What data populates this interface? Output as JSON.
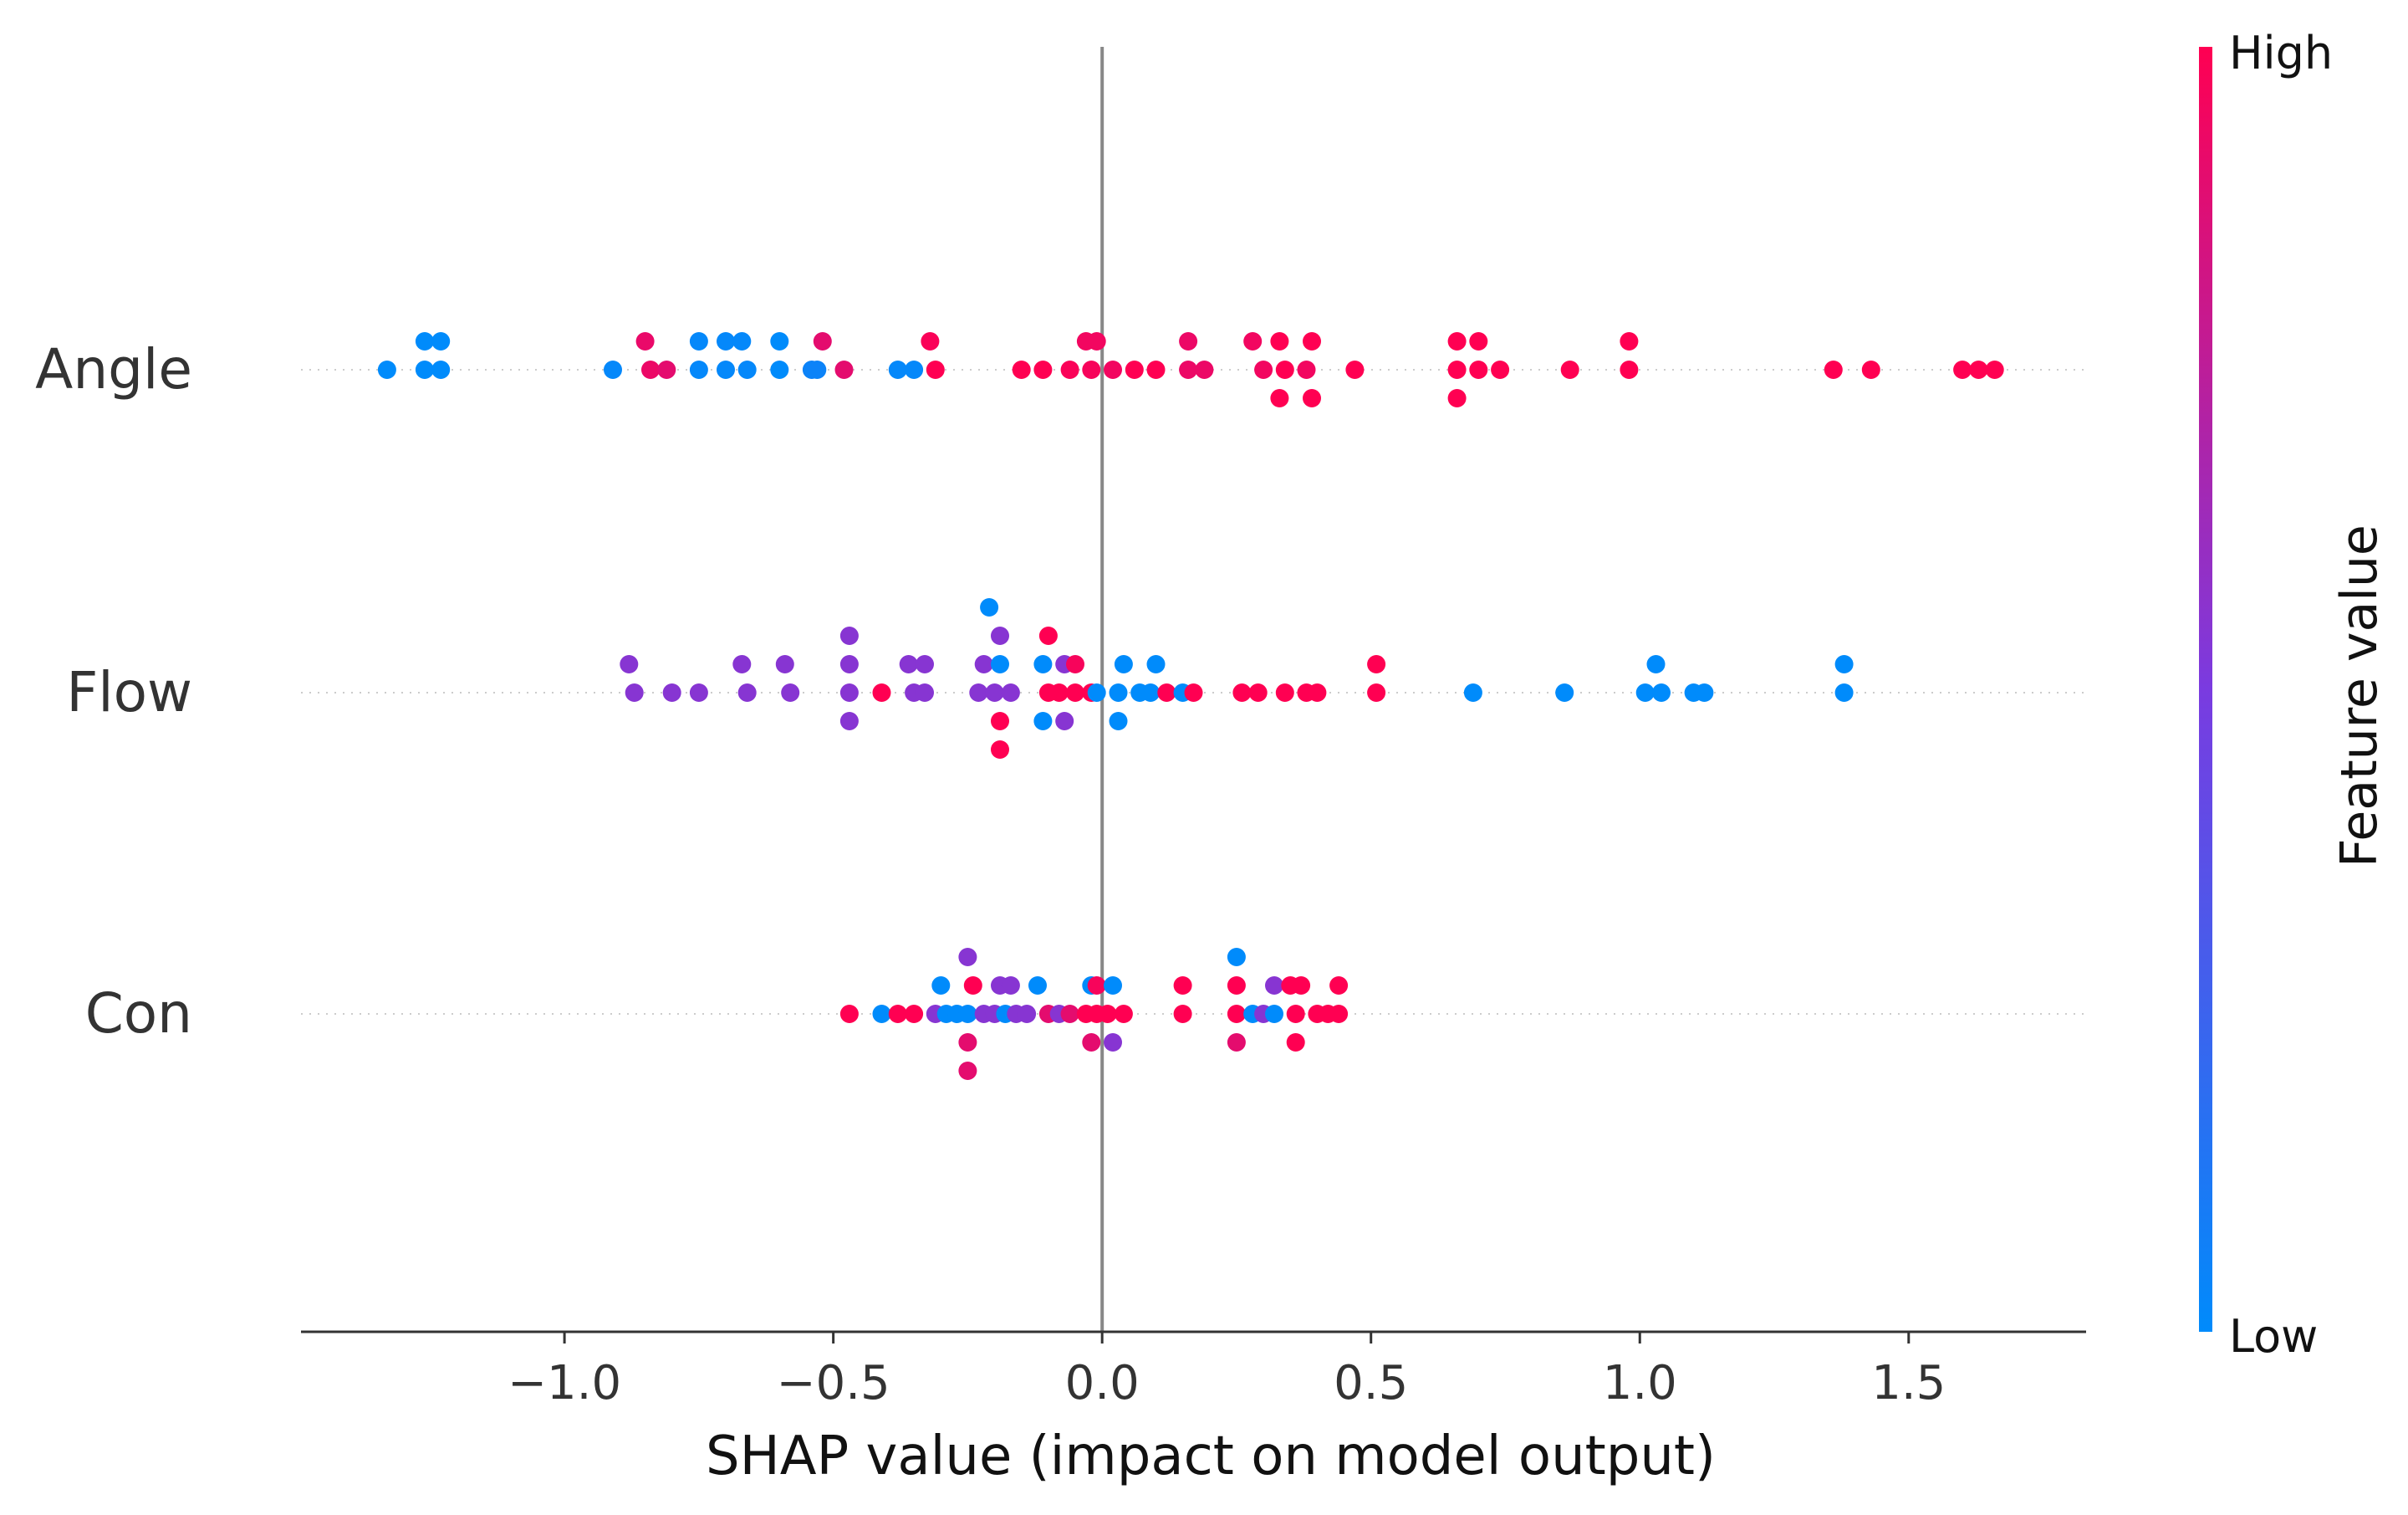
{
  "chart_data": {
    "type": "scatter",
    "subtype": "shap-beeswarm",
    "xlabel": "SHAP value (impact on model output)",
    "xlim": [
      -1.49,
      1.83
    ],
    "xticks": [
      -1.0,
      -0.5,
      0.0,
      0.5,
      1.0,
      1.5
    ],
    "xtick_labels": [
      "−1.0",
      "−0.5",
      "0.0",
      "0.5",
      "1.0",
      "1.5"
    ],
    "zero_line": 0,
    "colorbar": {
      "title": "Feature value",
      "high_label": "High",
      "low_label": "Low",
      "high_color": "#ff0052",
      "mid_color": "#7a3be0",
      "low_color": "#008bfb"
    },
    "features": [
      {
        "name": "Angle",
        "points": [
          {
            "x": -1.26,
            "offset": -1,
            "v": 0.0
          },
          {
            "x": -1.23,
            "offset": -1,
            "v": 0.0
          },
          {
            "x": -0.85,
            "offset": -1,
            "v": 0.92
          },
          {
            "x": -0.75,
            "offset": -1,
            "v": 0.02
          },
          {
            "x": -0.7,
            "offset": -1,
            "v": 0.02
          },
          {
            "x": -0.67,
            "offset": -1,
            "v": 0.02
          },
          {
            "x": -0.6,
            "offset": -1,
            "v": 0.0
          },
          {
            "x": -0.52,
            "offset": -1,
            "v": 0.9
          },
          {
            "x": -0.32,
            "offset": -1,
            "v": 0.98
          },
          {
            "x": -0.03,
            "offset": -1,
            "v": 0.95
          },
          {
            "x": -0.01,
            "offset": -1,
            "v": 0.95
          },
          {
            "x": 0.16,
            "offset": -1,
            "v": 0.93
          },
          {
            "x": 0.28,
            "offset": -1,
            "v": 0.95
          },
          {
            "x": 0.33,
            "offset": -1,
            "v": 1.0
          },
          {
            "x": 0.39,
            "offset": -1,
            "v": 1.0
          },
          {
            "x": 0.66,
            "offset": -1,
            "v": 1.0
          },
          {
            "x": 0.7,
            "offset": -1,
            "v": 1.0
          },
          {
            "x": 0.98,
            "offset": -1,
            "v": 1.0
          },
          {
            "x": -1.33,
            "offset": 0,
            "v": 0.0
          },
          {
            "x": -1.26,
            "offset": 0,
            "v": 0.0
          },
          {
            "x": -1.23,
            "offset": 0,
            "v": 0.0
          },
          {
            "x": -0.91,
            "offset": 0,
            "v": 0.02
          },
          {
            "x": -0.84,
            "offset": 0,
            "v": 0.93
          },
          {
            "x": -0.81,
            "offset": 0,
            "v": 0.9
          },
          {
            "x": -0.75,
            "offset": 0,
            "v": 0.02
          },
          {
            "x": -0.7,
            "offset": 0,
            "v": 0.02
          },
          {
            "x": -0.66,
            "offset": 0,
            "v": 0.02
          },
          {
            "x": -0.6,
            "offset": 0,
            "v": 0.0
          },
          {
            "x": -0.53,
            "offset": 0,
            "v": 0.05
          },
          {
            "x": -0.54,
            "offset": 0,
            "v": 0.05
          },
          {
            "x": -0.48,
            "offset": 0,
            "v": 0.9
          },
          {
            "x": -0.38,
            "offset": 0,
            "v": 0.02
          },
          {
            "x": -0.35,
            "offset": 0,
            "v": 0.02
          },
          {
            "x": -0.31,
            "offset": 0,
            "v": 1.0
          },
          {
            "x": -0.15,
            "offset": 0,
            "v": 1.0
          },
          {
            "x": -0.11,
            "offset": 0,
            "v": 1.0
          },
          {
            "x": -0.06,
            "offset": 0,
            "v": 0.98
          },
          {
            "x": -0.02,
            "offset": 0,
            "v": 0.97
          },
          {
            "x": 0.02,
            "offset": 0,
            "v": 0.95
          },
          {
            "x": 0.06,
            "offset": 0,
            "v": 1.0
          },
          {
            "x": 0.1,
            "offset": 0,
            "v": 1.0
          },
          {
            "x": 0.16,
            "offset": 0,
            "v": 0.93
          },
          {
            "x": 0.19,
            "offset": 0,
            "v": 0.93
          },
          {
            "x": 0.3,
            "offset": 0,
            "v": 0.95
          },
          {
            "x": 0.34,
            "offset": 0,
            "v": 1.0
          },
          {
            "x": 0.38,
            "offset": 0,
            "v": 0.95
          },
          {
            "x": 0.47,
            "offset": 0,
            "v": 1.0
          },
          {
            "x": 0.66,
            "offset": 0,
            "v": 1.0
          },
          {
            "x": 0.7,
            "offset": 0,
            "v": 1.0
          },
          {
            "x": 0.74,
            "offset": 0,
            "v": 1.0
          },
          {
            "x": 0.87,
            "offset": 0,
            "v": 1.0
          },
          {
            "x": 0.98,
            "offset": 0,
            "v": 1.0
          },
          {
            "x": 1.36,
            "offset": 0,
            "v": 1.0
          },
          {
            "x": 1.43,
            "offset": 0,
            "v": 1.0
          },
          {
            "x": 1.6,
            "offset": 0,
            "v": 1.0
          },
          {
            "x": 1.63,
            "offset": 0,
            "v": 1.0
          },
          {
            "x": 1.66,
            "offset": 0,
            "v": 1.0
          },
          {
            "x": 0.33,
            "offset": 1,
            "v": 1.0
          },
          {
            "x": 0.39,
            "offset": 1,
            "v": 1.0
          },
          {
            "x": 0.66,
            "offset": 1,
            "v": 1.0
          }
        ]
      },
      {
        "name": "Flow",
        "points": [
          {
            "x": -0.21,
            "offset": -3,
            "v": 0.0
          },
          {
            "x": -0.47,
            "offset": -2,
            "v": 0.55
          },
          {
            "x": -0.19,
            "offset": -2,
            "v": 0.55
          },
          {
            "x": -0.1,
            "offset": -2,
            "v": 1.0
          },
          {
            "x": -0.88,
            "offset": -1,
            "v": 0.55
          },
          {
            "x": -0.67,
            "offset": -1,
            "v": 0.55
          },
          {
            "x": -0.59,
            "offset": -1,
            "v": 0.55
          },
          {
            "x": -0.47,
            "offset": -1,
            "v": 0.55
          },
          {
            "x": -0.36,
            "offset": -1,
            "v": 0.55
          },
          {
            "x": -0.33,
            "offset": -1,
            "v": 0.55
          },
          {
            "x": -0.22,
            "offset": -1,
            "v": 0.55
          },
          {
            "x": -0.19,
            "offset": -1,
            "v": 0.0
          },
          {
            "x": -0.11,
            "offset": -1,
            "v": 0.0
          },
          {
            "x": -0.07,
            "offset": -1,
            "v": 0.55
          },
          {
            "x": -0.05,
            "offset": -1,
            "v": 0.97
          },
          {
            "x": 0.04,
            "offset": -1,
            "v": 0.0
          },
          {
            "x": 0.1,
            "offset": -1,
            "v": 0.0
          },
          {
            "x": 0.51,
            "offset": -1,
            "v": 1.0
          },
          {
            "x": 1.03,
            "offset": -1,
            "v": 0.0
          },
          {
            "x": 1.38,
            "offset": -1,
            "v": 0.0
          },
          {
            "x": -0.87,
            "offset": 0,
            "v": 0.55
          },
          {
            "x": -0.8,
            "offset": 0,
            "v": 0.55
          },
          {
            "x": -0.75,
            "offset": 0,
            "v": 0.55
          },
          {
            "x": -0.66,
            "offset": 0,
            "v": 0.55
          },
          {
            "x": -0.58,
            "offset": 0,
            "v": 0.55
          },
          {
            "x": -0.47,
            "offset": 0,
            "v": 0.55
          },
          {
            "x": -0.41,
            "offset": 0,
            "v": 1.0
          },
          {
            "x": -0.35,
            "offset": 0,
            "v": 0.55
          },
          {
            "x": -0.33,
            "offset": 0,
            "v": 0.55
          },
          {
            "x": -0.23,
            "offset": 0,
            "v": 0.55
          },
          {
            "x": -0.2,
            "offset": 0,
            "v": 0.55
          },
          {
            "x": -0.17,
            "offset": 0,
            "v": 0.55
          },
          {
            "x": -0.1,
            "offset": 0,
            "v": 1.0
          },
          {
            "x": -0.08,
            "offset": 0,
            "v": 1.0
          },
          {
            "x": -0.05,
            "offset": 0,
            "v": 1.0
          },
          {
            "x": -0.02,
            "offset": 0,
            "v": 1.0
          },
          {
            "x": -0.01,
            "offset": 0,
            "v": 0.0
          },
          {
            "x": 0.03,
            "offset": 0,
            "v": 0.0
          },
          {
            "x": 0.07,
            "offset": 0,
            "v": 0.0
          },
          {
            "x": 0.09,
            "offset": 0,
            "v": 0.0
          },
          {
            "x": 0.12,
            "offset": 0,
            "v": 1.0
          },
          {
            "x": 0.15,
            "offset": 0,
            "v": 0.0
          },
          {
            "x": 0.17,
            "offset": 0,
            "v": 1.0
          },
          {
            "x": 0.26,
            "offset": 0,
            "v": 1.0
          },
          {
            "x": 0.29,
            "offset": 0,
            "v": 1.0
          },
          {
            "x": 0.34,
            "offset": 0,
            "v": 1.0
          },
          {
            "x": 0.38,
            "offset": 0,
            "v": 1.0
          },
          {
            "x": 0.4,
            "offset": 0,
            "v": 1.0
          },
          {
            "x": 0.51,
            "offset": 0,
            "v": 1.0
          },
          {
            "x": 0.69,
            "offset": 0,
            "v": 0.0
          },
          {
            "x": 0.86,
            "offset": 0,
            "v": 0.0
          },
          {
            "x": 1.01,
            "offset": 0,
            "v": 0.0
          },
          {
            "x": 1.04,
            "offset": 0,
            "v": 0.0
          },
          {
            "x": 1.1,
            "offset": 0,
            "v": 0.0
          },
          {
            "x": 1.12,
            "offset": 0,
            "v": 0.0
          },
          {
            "x": 1.38,
            "offset": 0,
            "v": 0.0
          },
          {
            "x": -0.47,
            "offset": 1,
            "v": 0.55
          },
          {
            "x": -0.19,
            "offset": 1,
            "v": 1.0
          },
          {
            "x": -0.11,
            "offset": 1,
            "v": 0.0
          },
          {
            "x": -0.07,
            "offset": 1,
            "v": 0.55
          },
          {
            "x": 0.03,
            "offset": 1,
            "v": 0.0
          },
          {
            "x": -0.19,
            "offset": 2,
            "v": 1.0
          }
        ]
      },
      {
        "name": "Con",
        "points": [
          {
            "x": -0.25,
            "offset": -2,
            "v": 0.55
          },
          {
            "x": 0.25,
            "offset": -2,
            "v": 0.0
          },
          {
            "x": -0.3,
            "offset": -1,
            "v": 0.0
          },
          {
            "x": -0.24,
            "offset": -1,
            "v": 1.0
          },
          {
            "x": -0.19,
            "offset": -1,
            "v": 0.55
          },
          {
            "x": -0.17,
            "offset": -1,
            "v": 0.55
          },
          {
            "x": -0.12,
            "offset": -1,
            "v": 0.0
          },
          {
            "x": -0.02,
            "offset": -1,
            "v": 0.0
          },
          {
            "x": -0.01,
            "offset": -1,
            "v": 0.97
          },
          {
            "x": 0.02,
            "offset": -1,
            "v": 0.0
          },
          {
            "x": 0.15,
            "offset": -1,
            "v": 1.0
          },
          {
            "x": 0.25,
            "offset": -1,
            "v": 1.0
          },
          {
            "x": 0.32,
            "offset": -1,
            "v": 0.55
          },
          {
            "x": 0.35,
            "offset": -1,
            "v": 1.0
          },
          {
            "x": 0.37,
            "offset": -1,
            "v": 1.0
          },
          {
            "x": 0.44,
            "offset": -1,
            "v": 1.0
          },
          {
            "x": -0.47,
            "offset": 0,
            "v": 1.0
          },
          {
            "x": -0.41,
            "offset": 0,
            "v": 0.0
          },
          {
            "x": -0.38,
            "offset": 0,
            "v": 1.0
          },
          {
            "x": -0.35,
            "offset": 0,
            "v": 1.0
          },
          {
            "x": -0.31,
            "offset": 0,
            "v": 0.55
          },
          {
            "x": -0.29,
            "offset": 0,
            "v": 0.0
          },
          {
            "x": -0.27,
            "offset": 0,
            "v": 0.0
          },
          {
            "x": -0.25,
            "offset": 0,
            "v": 0.0
          },
          {
            "x": -0.22,
            "offset": 0,
            "v": 0.55
          },
          {
            "x": -0.2,
            "offset": 0,
            "v": 0.55
          },
          {
            "x": -0.18,
            "offset": 0,
            "v": 0.0
          },
          {
            "x": -0.16,
            "offset": 0,
            "v": 0.55
          },
          {
            "x": -0.14,
            "offset": 0,
            "v": 0.55
          },
          {
            "x": -0.1,
            "offset": 0,
            "v": 0.9
          },
          {
            "x": -0.08,
            "offset": 0,
            "v": 0.55
          },
          {
            "x": -0.06,
            "offset": 0,
            "v": 0.9
          },
          {
            "x": -0.03,
            "offset": 0,
            "v": 1.0
          },
          {
            "x": -0.01,
            "offset": 0,
            "v": 1.0
          },
          {
            "x": 0.01,
            "offset": 0,
            "v": 1.0
          },
          {
            "x": 0.04,
            "offset": 0,
            "v": 1.0
          },
          {
            "x": 0.15,
            "offset": 0,
            "v": 1.0
          },
          {
            "x": 0.25,
            "offset": 0,
            "v": 1.0
          },
          {
            "x": 0.28,
            "offset": 0,
            "v": 0.0
          },
          {
            "x": 0.3,
            "offset": 0,
            "v": 0.55
          },
          {
            "x": 0.32,
            "offset": 0,
            "v": 0.0
          },
          {
            "x": 0.36,
            "offset": 0,
            "v": 1.0
          },
          {
            "x": 0.4,
            "offset": 0,
            "v": 1.0
          },
          {
            "x": 0.42,
            "offset": 0,
            "v": 1.0
          },
          {
            "x": 0.44,
            "offset": 0,
            "v": 1.0
          },
          {
            "x": -0.25,
            "offset": 1,
            "v": 0.9
          },
          {
            "x": -0.02,
            "offset": 1,
            "v": 0.9
          },
          {
            "x": 0.02,
            "offset": 1,
            "v": 0.55
          },
          {
            "x": 0.25,
            "offset": 1,
            "v": 0.9
          },
          {
            "x": 0.36,
            "offset": 1,
            "v": 1.0
          },
          {
            "x": -0.25,
            "offset": 2,
            "v": 0.9
          }
        ]
      }
    ]
  }
}
